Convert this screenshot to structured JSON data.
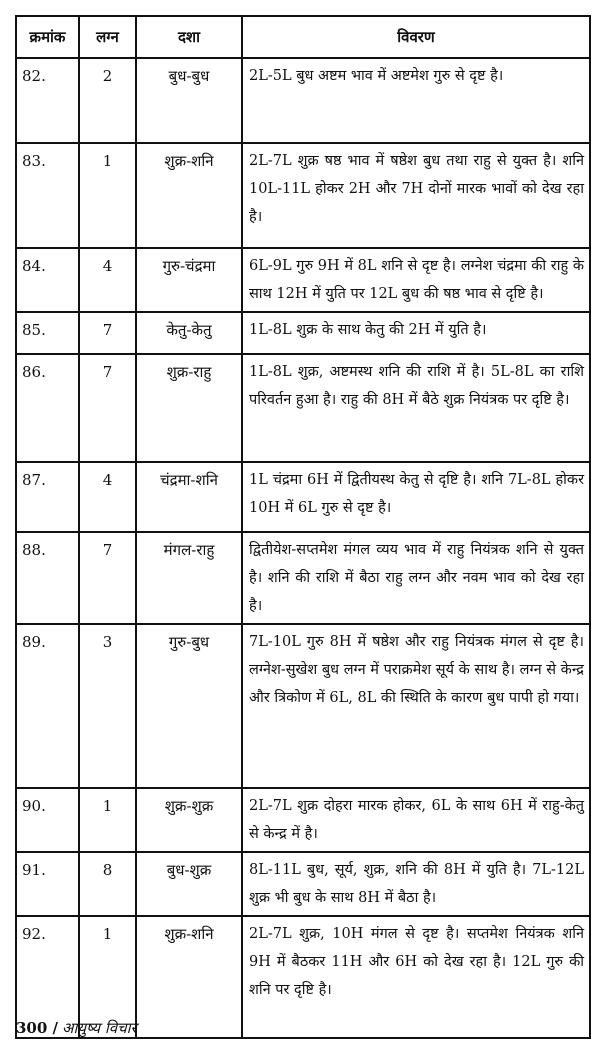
{
  "table": {
    "headers": [
      "क्रमांक",
      "लग्न",
      "दशा",
      "विवरण"
    ],
    "rows": [
      {
        "no": "82.",
        "lagna": "2",
        "dasha": "बुध-बुध",
        "desc": "2L-5L बुध अष्टम भाव में अष्टमेश गुरु से दृष्ट है।"
      },
      {
        "no": "83.",
        "lagna": "1",
        "dasha": "शुक्र-शनि",
        "desc": "2L-7L शुक्र षष्ठ भाव में षष्ठेश बुध तथा राहु से युक्त है। शनि 10L-11L होकर 2H और 7H दोनों मारक भावों को देख रहा है।"
      },
      {
        "no": "84.",
        "lagna": "4",
        "dasha": "गुरु-चंद्रमा",
        "desc": "6L-9L गुरु 9H में 8L शनि से दृष्ट है। लग्नेश चंद्रमा की राहु के साथ 12H में युति पर 12L बुध की षष्ठ भाव से दृष्टि है।"
      },
      {
        "no": "85.",
        "lagna": "7",
        "dasha": "केतु-केतु",
        "desc": "1L-8L शुक्र के साथ केतु की 2H में युति है।"
      },
      {
        "no": "86.",
        "lagna": "7",
        "dasha": "शुक्र-राहु",
        "desc": "1L-8L शुक्र, अष्टमस्थ शनि की राशि में है। 5L-8L का राशि परिवर्तन हुआ है। राहु की 8H में बैठे शुक्र नियंत्रक पर दृष्टि है।"
      },
      {
        "no": "87.",
        "lagna": "4",
        "dasha": "चंद्रमा-शनि",
        "desc": "1L चंद्रमा 6H में द्वितीयस्थ केतु से दृष्टि है। शनि 7L-8L होकर 10H में 6L गुरु से दृष्ट है।"
      },
      {
        "no": "88.",
        "lagna": "7",
        "dasha": "मंगल-राहु",
        "desc": "द्वितीयेश-सप्तमेश मंगल व्यय भाव में राहु नियंत्रक शनि से युक्त है। शनि की राशि में बैठा राहु लग्न और नवम भाव को देख रहा है।"
      },
      {
        "no": "89.",
        "lagna": "3",
        "dasha": "गुरु-बुध",
        "desc": "7L-10L गुरु 8H में षष्ठेश और राहु नियंत्रक मंगल से दृष्ट है। लग्नेश-सुखेश बुध लग्न में पराक्रमेश सूर्य के साथ है। लग्न से केन्द्र और त्रिकोण में 6L, 8L की स्थिति के कारण बुध पापी हो गया।"
      },
      {
        "no": "90.",
        "lagna": "1",
        "dasha": "शुक्र-शुक्र",
        "desc": "2L-7L शुक्र दोहरा मारक होकर, 6L के साथ 6H में राहु-केतु से केन्द्र में है।"
      },
      {
        "no": "91.",
        "lagna": "8",
        "dasha": "बुध-शुक्र",
        "desc": "8L-11L बुध, सूर्य, शुक्र, शनि की 8H में युति है। 7L-12L शुक्र भी बुध के साथ 8H में बैठा है।"
      },
      {
        "no": "92.",
        "lagna": "1",
        "dasha": "शुक्र-शनि",
        "desc": "2L-7L शुक्र, 10H मंगल से दृष्ट है। सप्तमेश नियंत्रक शनि 9H में बैठकर 11H और 6H को देख रहा है। 12L गुरु की शनि पर दृष्टि है।"
      }
    ]
  },
  "footer": {
    "page_number": "300 /",
    "book_title": "आयुष्य विचार"
  }
}
